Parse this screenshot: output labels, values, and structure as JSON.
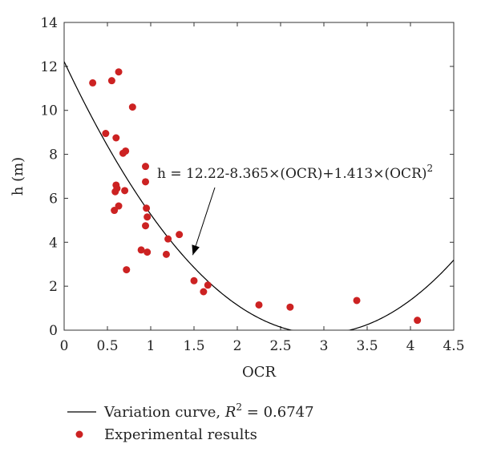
{
  "chart_data": {
    "type": "scatter",
    "xlabel": "OCR",
    "ylabel": "h (m)",
    "xlim": [
      0,
      4.5
    ],
    "ylim": [
      0,
      14
    ],
    "xticks": [
      "0",
      "0.5",
      "1",
      "1.5",
      "2",
      "2.5",
      "3",
      "3.5",
      "4",
      "4.5"
    ],
    "yticks": [
      "0",
      "2",
      "4",
      "6",
      "8",
      "10",
      "12",
      "14"
    ],
    "grid": false,
    "legend_position": "bottom",
    "series": [
      {
        "name": "Variation curve",
        "kind": "curve",
        "coefficients": [
          12.22,
          -8.365,
          1.413
        ],
        "r2_label": "= 0.6747",
        "color": "#000000"
      },
      {
        "name": "Experimental results",
        "kind": "points",
        "color": "#cc2222",
        "points": [
          [
            0.33,
            11.25
          ],
          [
            0.55,
            11.35
          ],
          [
            0.63,
            11.75
          ],
          [
            0.79,
            10.15
          ],
          [
            0.48,
            8.95
          ],
          [
            0.6,
            8.75
          ],
          [
            0.68,
            8.05
          ],
          [
            0.71,
            8.15
          ],
          [
            0.94,
            7.45
          ],
          [
            0.94,
            6.75
          ],
          [
            0.6,
            6.6
          ],
          [
            0.61,
            6.45
          ],
          [
            0.59,
            6.3
          ],
          [
            0.7,
            6.35
          ],
          [
            0.63,
            5.65
          ],
          [
            0.58,
            5.45
          ],
          [
            0.95,
            5.55
          ],
          [
            0.96,
            5.15
          ],
          [
            0.94,
            4.75
          ],
          [
            1.2,
            4.15
          ],
          [
            1.33,
            4.35
          ],
          [
            0.89,
            3.65
          ],
          [
            0.96,
            3.55
          ],
          [
            1.18,
            3.45
          ],
          [
            0.72,
            2.75
          ],
          [
            1.5,
            2.25
          ],
          [
            1.66,
            2.05
          ],
          [
            1.61,
            1.75
          ],
          [
            2.25,
            1.15
          ],
          [
            2.61,
            1.05
          ],
          [
            3.38,
            1.35
          ],
          [
            4.08,
            0.45
          ]
        ]
      }
    ],
    "annotation": {
      "text": "h = 12.22-8.365×(OCR)+1.413×(OCR)",
      "superscript": "2",
      "arrow_target": [
        1.43,
        3.2
      ]
    },
    "legend": {
      "curve_label": "Variation curve, ",
      "r_symbol": "R",
      "r_exp": "2",
      "r_value": " = 0.6747",
      "points_label": "Experimental results"
    }
  }
}
